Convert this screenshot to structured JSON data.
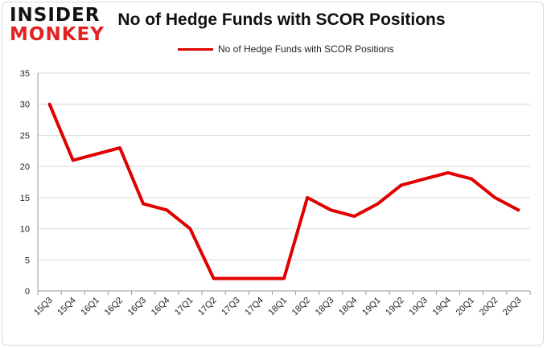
{
  "logo": {
    "line1": "INSIDER",
    "line2": "MONKEY"
  },
  "colors": {
    "line": "#e00000",
    "brand_red": "#e22222",
    "grid": "#d9d9d9",
    "axis": "#999999"
  },
  "chart_data": {
    "type": "line",
    "title": "No of Hedge Funds with SCOR Positions",
    "xlabel": "",
    "ylabel": "",
    "legend_position": "top",
    "grid": true,
    "ylim": [
      0,
      35
    ],
    "yticks": [
      0,
      5,
      10,
      15,
      20,
      25,
      30,
      35
    ],
    "categories": [
      "15Q3",
      "15Q4",
      "16Q1",
      "16Q2",
      "16Q3",
      "16Q4",
      "17Q1",
      "17Q2",
      "17Q3",
      "17Q4",
      "18Q1",
      "18Q2",
      "18Q3",
      "18Q4",
      "19Q1",
      "19Q2",
      "19Q3",
      "19Q4",
      "20Q1",
      "20Q2",
      "20Q3"
    ],
    "series": [
      {
        "name": "No of Hedge Funds with SCOR Positions",
        "values": [
          30,
          21,
          22,
          23,
          14,
          13,
          10,
          2,
          2,
          2,
          2,
          15,
          13,
          12,
          14,
          17,
          18,
          19,
          18,
          15,
          13
        ]
      }
    ]
  }
}
